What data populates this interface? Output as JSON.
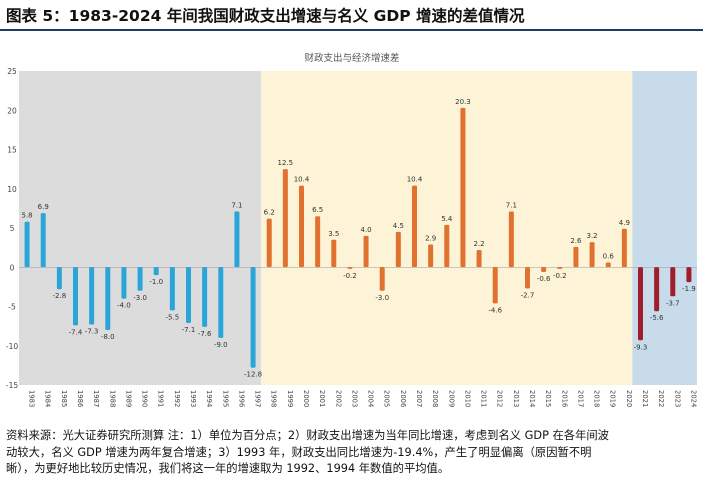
{
  "figure": {
    "title": "图表 5：1983-2024 年间我国财政支出增速与名义 GDP 增速的差值情况",
    "source_lines": [
      "资料来源：光大证券研究所测算  注：1）单位为百分点；2）财政支出增速为当年同比增速，考虑到名义 GDP 在各年间波",
      "动较大，名义 GDP 增速为两年复合增速；3）1993 年，财政支出同比增速为-19.4%，产生了明显偏离（原因暂不明",
      "晰），为更好地比较历史情况，我们将这一年的增速取为 1992、1994 年数值的平均值。"
    ]
  },
  "chart_data": {
    "type": "bar",
    "title": "财政支出与经济增速差",
    "xlabel": "",
    "ylabel": "",
    "ylim": [
      -15,
      25
    ],
    "yticks": [
      -15,
      -10,
      -5,
      0,
      5,
      10,
      15,
      20,
      25
    ],
    "grid": false,
    "categories": [
      "1983",
      "1984",
      "1985",
      "1986",
      "1987",
      "1988",
      "1989",
      "1990",
      "1991",
      "1992",
      "1993",
      "1994",
      "1995",
      "1996",
      "1997",
      "1998",
      "1999",
      "2000",
      "2001",
      "2002",
      "2003",
      "2004",
      "2005",
      "2006",
      "2007",
      "2008",
      "2009",
      "2010",
      "2011",
      "2012",
      "2013",
      "2014",
      "2015",
      "2016",
      "2017",
      "2018",
      "2019",
      "2020",
      "2021",
      "2022",
      "2023",
      "2024"
    ],
    "values": [
      5.8,
      6.9,
      -2.8,
      -7.4,
      -7.3,
      -8.0,
      -4.0,
      -3.0,
      -1.0,
      -5.5,
      -7.1,
      -7.6,
      -9.0,
      7.1,
      -12.8,
      6.2,
      12.5,
      10.4,
      6.5,
      3.5,
      -0.2,
      4.0,
      -3.0,
      4.5,
      10.4,
      2.9,
      5.4,
      20.3,
      2.2,
      -4.6,
      7.1,
      -2.7,
      -0.6,
      -0.2,
      2.6,
      3.2,
      0.6,
      4.9,
      -9.3,
      -5.6,
      -3.7,
      -1.9
    ],
    "data_labels": [
      "5.8",
      "6.9",
      "-2.8",
      "-7.4",
      "-7.3",
      "-8.0",
      "-4.0",
      "-3.0",
      "-1.0",
      "-5.5",
      "-7.1",
      "-7.6",
      "-9.0",
      "7.1",
      "-12.8",
      "6.2",
      "12.5",
      "10.4",
      "6.5",
      "3.5",
      "-0.2",
      "4.0",
      "-3.0",
      "4.5",
      "10.4",
      "2.9",
      "5.4",
      "20.3",
      "2.2",
      "-4.6",
      "7.1",
      "-2.7",
      "-0.6",
      "-0.2",
      "2.6",
      "3.2",
      "0.6",
      "4.9",
      "-9.3",
      "-5.6",
      "-3.7",
      "-1.9"
    ],
    "periods": [
      {
        "from": "1983",
        "to": "1997",
        "bg": "#dcdcdc",
        "bar": "#2aa5d8"
      },
      {
        "from": "1998",
        "to": "2020",
        "bg": "#fdf3d6",
        "bar": "#e0712f"
      },
      {
        "from": "2021",
        "to": "2024",
        "bg": "#c7dbea",
        "bar": "#a01d2a"
      }
    ],
    "colors": {
      "axis_text": "#444444",
      "zero_line": "#999999"
    }
  }
}
